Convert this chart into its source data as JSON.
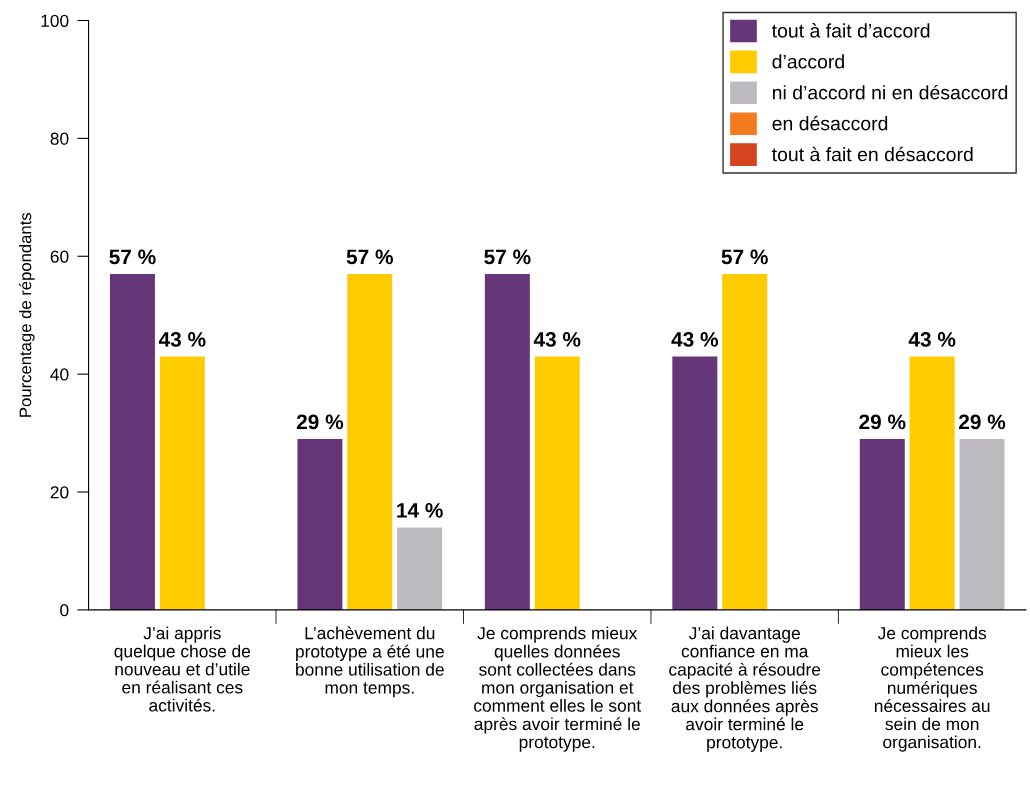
{
  "chart_data": {
    "type": "bar",
    "ylabel": "Pourcentage de répondants",
    "categories": [
      "J’ai appris\nquelque chose de\nnouveau et d’utile\nen réalisant ces\nactivités.",
      "L’achèvement du\nprototype a été une\nbonne utilisation de\nmon temps.",
      "Je comprends mieux\nquelles données\nsont collectées dans\nmon organisation et\ncomment elles le sont\naprès avoir terminé le\nprototype.",
      "J’ai davantage\nconfiance en ma\ncapacité à résoudre\ndes problèmes liés\naux données après\navoir terminé le\nprototype.",
      "Je comprends\nmieux les\ncompétences\nnumériques\nnécessaires au\nsein de mon\norganisation."
    ],
    "series": [
      {
        "name": "tout à fait d’accord",
        "color": "#663778",
        "values": [
          57,
          29,
          57,
          43,
          29
        ],
        "value_labels": [
          "57 %",
          "29 %",
          "57 %",
          "43 %",
          "29 %"
        ]
      },
      {
        "name": "d’accord",
        "color": "#ffcc00",
        "values": [
          43,
          57,
          43,
          57,
          43
        ],
        "value_labels": [
          "43 %",
          "57 %",
          "43 %",
          "57 %",
          "43 %"
        ]
      },
      {
        "name": "ni d’accord ni en désaccord",
        "color": "#bcbabe",
        "values": [
          null,
          14,
          null,
          null,
          29
        ],
        "value_labels": [
          null,
          "14 %",
          null,
          null,
          "29 %"
        ]
      },
      {
        "name": "en désaccord",
        "color": "#f47b20",
        "values": [
          null,
          null,
          null,
          null,
          null
        ]
      },
      {
        "name": "tout à fait en désaccord",
        "color": "#d4441f",
        "values": [
          null,
          null,
          null,
          null,
          null
        ]
      }
    ],
    "ylim": [
      0,
      100
    ],
    "yticks": [
      0,
      20,
      40,
      60,
      80,
      100
    ],
    "grid": false,
    "legend": "top right"
  }
}
